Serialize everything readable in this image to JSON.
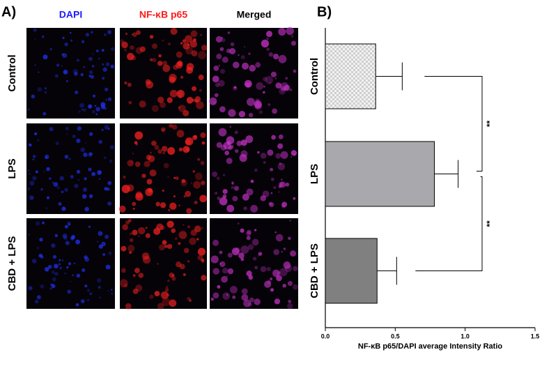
{
  "panel_a": {
    "label": "A)",
    "columns": [
      "DAPI",
      "NF-κB p65",
      "Merged"
    ],
    "rows": [
      "Control",
      "LPS",
      "CBD + LPS"
    ]
  },
  "chart_data": {
    "type": "barh",
    "label": "B)",
    "categories": [
      "Control",
      "LPS",
      "CBD + LPS"
    ],
    "values": [
      0.36,
      0.78,
      0.37
    ],
    "errors": [
      0.19,
      0.17,
      0.14
    ],
    "colors": [
      "#e6e6e6",
      "#a9a9ad",
      "#808080"
    ],
    "xlabel": "NF-κB p65/DAPI average Intensity Ratio",
    "xlim": [
      0,
      1.5
    ],
    "xticks": [
      {
        "value": 0,
        "label": "0.0"
      },
      0.5,
      {
        "value": 1,
        "label": "1.0"
      },
      1.5
    ],
    "significance": [
      {
        "between": [
          0,
          1
        ],
        "label": "**"
      },
      {
        "between": [
          1,
          2
        ],
        "label": "**"
      }
    ]
  }
}
